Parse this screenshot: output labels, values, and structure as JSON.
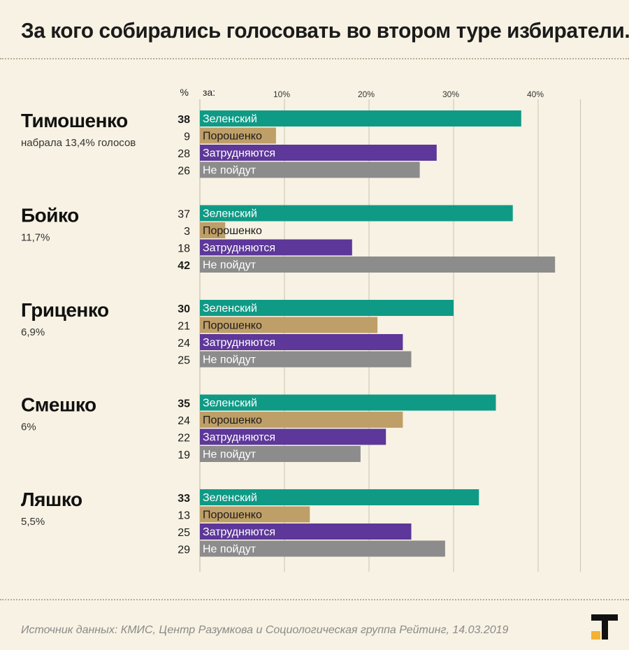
{
  "title": "За кого собирались голосовать во втором туре избиратели...",
  "source": "Источник данных: КМИС, Центр Разумкова и Социологическая группа Рейтинг, 14.03.2019",
  "colors": {
    "background": "#f7f2e3",
    "zelensky": "#0f9a86",
    "poroshenko": "#bf9f68",
    "undecided": "#5d3799",
    "not_going": "#8c8c8c",
    "logo_accent": "#f2b233"
  },
  "chart_data": {
    "type": "bar",
    "orientation": "horizontal",
    "header": {
      "percent_symbol": "%",
      "for_label": "за:"
    },
    "x_ticks": [
      "10%",
      "20%",
      "30%",
      "40%"
    ],
    "x_tick_values": [
      10,
      20,
      30,
      40
    ],
    "xlim": [
      0,
      45
    ],
    "grid": true,
    "categories": [
      "Зеленский",
      "Порошенко",
      "Затрудняются",
      "Не пойдут"
    ],
    "groups": [
      {
        "name": "Тимошенко",
        "subtitle": "набрала 13,4% голосов",
        "values": [
          38,
          9,
          28,
          26
        ],
        "bold_index": 0
      },
      {
        "name": "Бойко",
        "subtitle": "11,7%",
        "values": [
          37,
          3,
          18,
          42
        ],
        "bold_index": 3
      },
      {
        "name": "Гриценко",
        "subtitle": "6,9%",
        "values": [
          30,
          21,
          24,
          25
        ],
        "bold_index": 0
      },
      {
        "name": "Смешко",
        "subtitle": "6%",
        "values": [
          35,
          24,
          22,
          19
        ],
        "bold_index": 0
      },
      {
        "name": "Ляшко",
        "subtitle": "5,5%",
        "values": [
          33,
          13,
          25,
          29
        ],
        "bold_index": 0
      }
    ]
  }
}
